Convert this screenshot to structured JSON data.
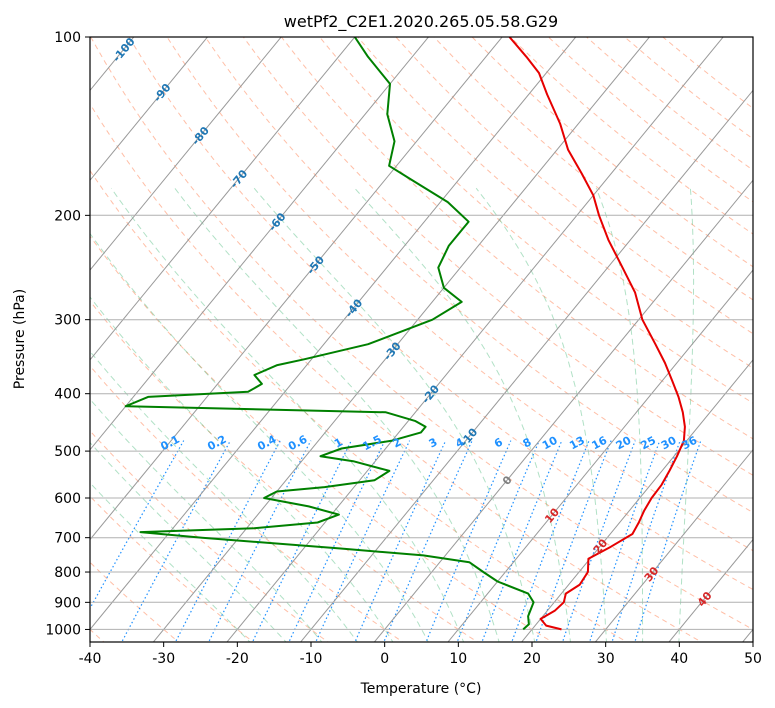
{
  "chart_data": {
    "type": "line",
    "title": "wetPf2_C2E1.2020.265.05.58.G29",
    "xlabel": "Temperature (°C)",
    "ylabel": "Pressure (hPa)",
    "xlim": [
      -40,
      50
    ],
    "ylim": [
      1050,
      100
    ],
    "y_scale": "log",
    "x_ticks": [
      -40,
      -30,
      -20,
      -10,
      0,
      10,
      20,
      30,
      40,
      50
    ],
    "y_ticks": [
      100,
      200,
      300,
      400,
      500,
      600,
      700,
      800,
      900,
      1000
    ],
    "grid": true,
    "isotherm_labels": [
      -100,
      -90,
      -80,
      -70,
      -60,
      -50,
      -40,
      -30,
      -20,
      -10,
      0,
      10,
      20,
      30,
      40
    ],
    "mixing_ratio_labels": [
      "0.1",
      "0.2",
      "0.4",
      "0.6",
      "1",
      "1.5",
      "2",
      "3",
      "4",
      "6",
      "8",
      "10",
      "13",
      "16",
      "20",
      "25",
      "30",
      "36"
    ],
    "colors": {
      "temperature": "#e60000",
      "dewpoint": "#008000",
      "isotherm_label_cold": "#1f77b4",
      "isotherm_label_zero": "#808080",
      "isotherm_label_warm": "#d62728",
      "mixing_ratio": "#1e90ff"
    },
    "series": [
      {
        "key": "temperature",
        "points": [
          [
            1000,
            24.0
          ],
          [
            985,
            21.5
          ],
          [
            960,
            20.0
          ],
          [
            930,
            21.0
          ],
          [
            900,
            21.3
          ],
          [
            870,
            20.6
          ],
          [
            840,
            21.5
          ],
          [
            800,
            21.2
          ],
          [
            760,
            19.8
          ],
          [
            725,
            21.5
          ],
          [
            690,
            23.0
          ],
          [
            660,
            22.6
          ],
          [
            630,
            22.0
          ],
          [
            600,
            21.6
          ],
          [
            570,
            21.5
          ],
          [
            540,
            21.0
          ],
          [
            510,
            20.4
          ],
          [
            480,
            19.6
          ],
          [
            455,
            18.2
          ],
          [
            430,
            16.3
          ],
          [
            405,
            14.0
          ],
          [
            380,
            11.3
          ],
          [
            355,
            8.4
          ],
          [
            330,
            5.0
          ],
          [
            300,
            0.5
          ],
          [
            270,
            -3.5
          ],
          [
            245,
            -8.0
          ],
          [
            220,
            -13.0
          ],
          [
            200,
            -17.0
          ],
          [
            185,
            -20.0
          ],
          [
            170,
            -24.0
          ],
          [
            155,
            -28.5
          ],
          [
            140,
            -32.5
          ],
          [
            125,
            -37.5
          ],
          [
            115,
            -41.0
          ],
          [
            108,
            -44.5
          ],
          [
            100,
            -49.0
          ]
        ]
      },
      {
        "key": "dewpoint",
        "points": [
          [
            1000,
            18.8
          ],
          [
            980,
            19.0
          ],
          [
            950,
            18.0
          ],
          [
            900,
            17.2
          ],
          [
            870,
            15.5
          ],
          [
            830,
            10.0
          ],
          [
            800,
            7.0
          ],
          [
            770,
            4.0
          ],
          [
            750,
            -3.0
          ],
          [
            730,
            -15.0
          ],
          [
            700,
            -35.0
          ],
          [
            685,
            -44.0
          ],
          [
            675,
            -29.0
          ],
          [
            660,
            -21.0
          ],
          [
            640,
            -19.0
          ],
          [
            620,
            -24.0
          ],
          [
            600,
            -31.0
          ],
          [
            585,
            -30.0
          ],
          [
            575,
            -24.0
          ],
          [
            560,
            -18.0
          ],
          [
            540,
            -17.0
          ],
          [
            520,
            -23.0
          ],
          [
            510,
            -28.0
          ],
          [
            495,
            -26.0
          ],
          [
            480,
            -20.0
          ],
          [
            465,
            -17.0
          ],
          [
            455,
            -17.0
          ],
          [
            445,
            -19.0
          ],
          [
            430,
            -24.0
          ],
          [
            420,
            -60.0
          ],
          [
            405,
            -58.0
          ],
          [
            397,
            -45.0
          ],
          [
            385,
            -44.0
          ],
          [
            372,
            -46.0
          ],
          [
            358,
            -44.0
          ],
          [
            350,
            -41.0
          ],
          [
            330,
            -34.0
          ],
          [
            300,
            -28.0
          ],
          [
            280,
            -26.0
          ],
          [
            265,
            -30.0
          ],
          [
            245,
            -33.0
          ],
          [
            225,
            -34.0
          ],
          [
            205,
            -34.0
          ],
          [
            190,
            -39.0
          ],
          [
            175,
            -46.0
          ],
          [
            165,
            -51.0
          ],
          [
            150,
            -53.0
          ],
          [
            135,
            -57.0
          ],
          [
            120,
            -60.0
          ],
          [
            108,
            -66.0
          ],
          [
            100,
            -70.0
          ]
        ]
      }
    ]
  }
}
